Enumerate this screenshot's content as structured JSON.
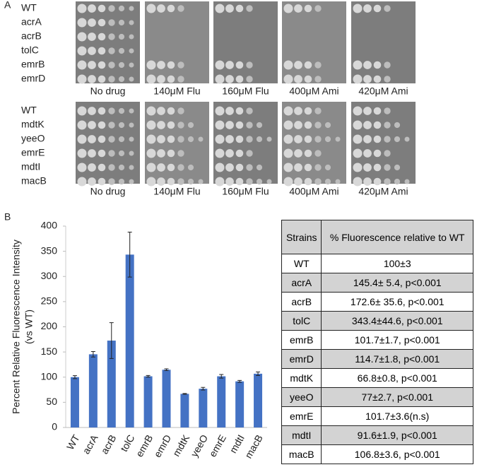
{
  "panel_a": {
    "label": "A",
    "blocks": [
      {
        "strains": [
          "WT",
          "acrA",
          "acrB",
          "tolC",
          "emrB",
          "emrD"
        ],
        "conditions": [
          "No drug",
          "140μM Flu",
          "160μM Flu",
          "400μM Ami",
          "420μM Ami"
        ]
      },
      {
        "strains": [
          "WT",
          "mdtK",
          "yeeO",
          "emrE",
          "mdtI",
          "macB"
        ],
        "conditions": [
          "No drug",
          "140μM Flu",
          "160μM Flu",
          "400μM Ami",
          "420μM Ami"
        ]
      }
    ]
  },
  "panel_b": {
    "label": "B"
  },
  "chart_data": {
    "type": "bar",
    "y_label": [
      "Percent Relative Fluorescence Intensity",
      "(vs WT)"
    ],
    "categories": [
      "WT",
      "acrA",
      "acrB",
      "tolC",
      "emrB",
      "emrD",
      "mdtK",
      "yeeO",
      "emrE",
      "mdtI",
      "macB"
    ],
    "values": [
      100,
      145.4,
      172.6,
      343.4,
      101.7,
      114.7,
      66.8,
      77,
      101.7,
      91.6,
      106.8
    ],
    "errors": [
      3,
      5.4,
      35.6,
      44.6,
      1.7,
      1.8,
      0.8,
      2.7,
      3.6,
      1.9,
      3.6
    ],
    "color": "#4472c4",
    "ylim": [
      0,
      400
    ],
    "yticks": [
      0,
      50,
      100,
      150,
      200,
      250,
      300,
      350,
      400
    ]
  },
  "table": {
    "header": [
      "Strains",
      "% Fluorescence relative to WT"
    ],
    "rows": [
      [
        "WT",
        "100±3"
      ],
      [
        "acrA",
        "145.4± 5.4, p<0.001"
      ],
      [
        "acrB",
        "172.6± 35.6, p<0.001"
      ],
      [
        "tolC",
        "343.4±44.6, p<0.001"
      ],
      [
        "emrB",
        "101.7±1.7, p<0.001"
      ],
      [
        "emrD",
        "114.7±1.8, p<0.001"
      ],
      [
        "mdtK",
        "66.8±0.8, p<0.001"
      ],
      [
        "yeeO",
        "77±2.7, p<0.001"
      ],
      [
        "emrE",
        "101.7±3.6(n.s)"
      ],
      [
        "mdtI",
        "91.6±1.9, p<0.001"
      ],
      [
        "macB",
        "106.8±3.6, p<0.001"
      ]
    ]
  }
}
